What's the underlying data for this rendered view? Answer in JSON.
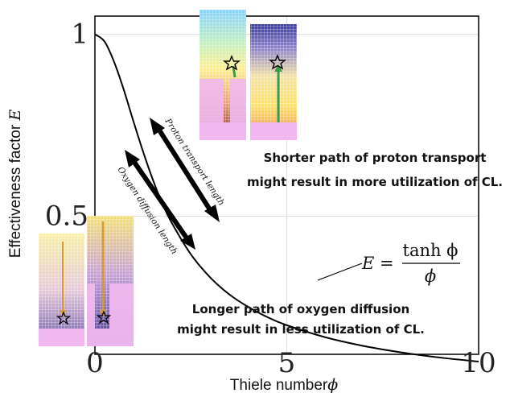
{
  "chart_data": {
    "type": "line",
    "xlabel": "Thiele number",
    "xlabel_symbol": "ϕ",
    "ylabel": "Effectiveness factor ",
    "ylabel_symbol": "E",
    "xlim": [
      0,
      10
    ],
    "ylim": [
      0.12,
      1.05
    ],
    "x_ticks": [
      0,
      5,
      10
    ],
    "x_tick_labels": [
      "0",
      "5",
      "10"
    ],
    "y_ticks": [
      0.5,
      1
    ],
    "y_tick_labels": [
      "0.5",
      "1"
    ],
    "grid": true,
    "series": [
      {
        "x": [
          0,
          0.25,
          0.5,
          0.75,
          1,
          1.25,
          1.5,
          1.75,
          2,
          2.5,
          3,
          3.5,
          4,
          4.5,
          5,
          6,
          7,
          8,
          9,
          10
        ],
        "y": [
          1,
          0.98,
          0.924,
          0.848,
          0.762,
          0.679,
          0.603,
          0.536,
          0.482,
          0.395,
          0.332,
          0.285,
          0.25,
          0.222,
          0.2,
          0.167,
          0.143,
          0.125,
          0.111,
          0.1
        ],
        "color": "#000000"
      }
    ],
    "annotations": {
      "formula": {
        "lhs": "E =",
        "numerator": "tanh ϕ",
        "denominator": "ϕ"
      },
      "proton_arrow_label": "Proton transport length",
      "oxygen_arrow_label": "Oxygen diffusion length",
      "note_top_line1": "Shorter path of proton transport",
      "note_top_line2": "might result in more utilization of CL.",
      "note_bottom_line1": "Longer path of oxygen diffusion",
      "note_bottom_line2": "might result in less utilization of CL."
    },
    "colors": {
      "curve": "#000000",
      "arrow": "#000000",
      "grid": "#dddddd",
      "pink_block": "#f0b8ee",
      "green_arrow": "#3a9a4a",
      "orange_arrow": "#d99a2b"
    }
  }
}
